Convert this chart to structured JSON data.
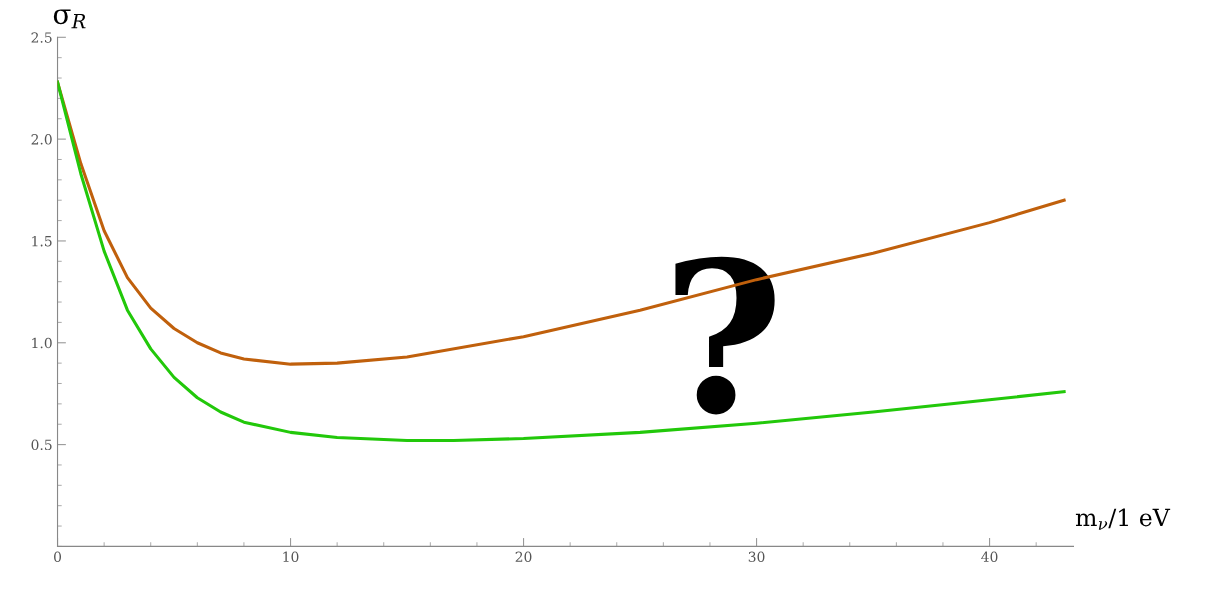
{
  "chart_data": {
    "type": "line",
    "ylabel": "σ$_{R}$",
    "xlabel": "m$_{ν}$/1 eV",
    "annotations": [
      "?"
    ],
    "xlim": [
      0,
      43.6
    ],
    "ylim": [
      0,
      2.5
    ],
    "xticks": [
      0,
      10,
      20,
      30,
      40
    ],
    "yticks": [
      0.5,
      {
        "value": 1,
        "label": "1.0"
      },
      1.5,
      {
        "value": 2,
        "label": "2.0"
      },
      2.5
    ],
    "grid": false,
    "legend": false,
    "marker": "none",
    "line_style": "solid",
    "series": [
      {
        "color": "#c0600c",
        "x": [
          0,
          1,
          2,
          3,
          4,
          5,
          6,
          7,
          8,
          10,
          12,
          15,
          20,
          25,
          30,
          35,
          40,
          43.2
        ],
        "values": [
          2.28,
          1.88,
          1.55,
          1.32,
          1.17,
          1.07,
          1.0,
          0.95,
          0.92,
          0.895,
          0.9,
          0.93,
          1.03,
          1.16,
          1.31,
          1.44,
          1.59,
          1.7
        ]
      },
      {
        "color": "#22c80a",
        "x": [
          0,
          1,
          2,
          3,
          4,
          5,
          6,
          7,
          8,
          10,
          12,
          15,
          17,
          20,
          25,
          30,
          35,
          40,
          43.2
        ],
        "values": [
          2.28,
          1.83,
          1.45,
          1.16,
          0.97,
          0.83,
          0.73,
          0.66,
          0.61,
          0.56,
          0.535,
          0.52,
          0.52,
          0.53,
          0.56,
          0.605,
          0.66,
          0.72,
          0.76
        ]
      }
    ]
  }
}
